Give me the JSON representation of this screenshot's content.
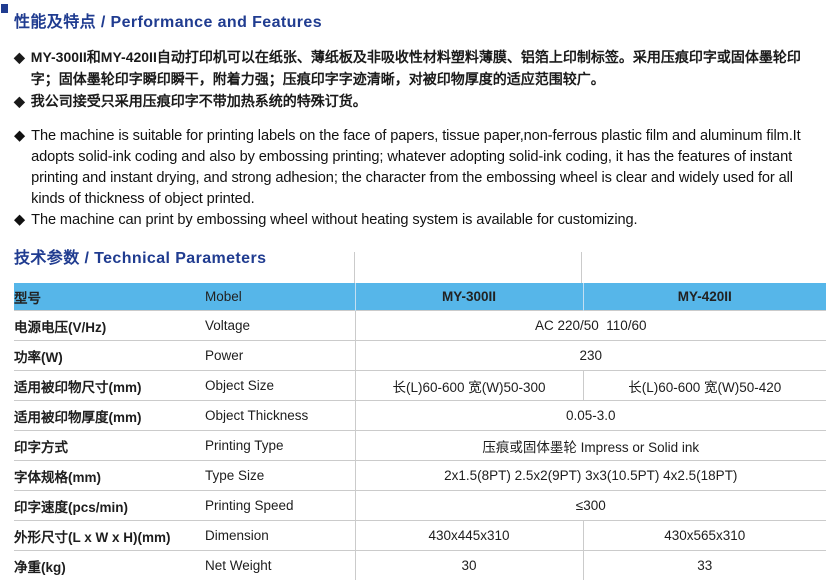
{
  "ui": {
    "bullet": "◆"
  },
  "colors": {
    "accent_navy": "#203c90",
    "header_blue": "#56b6e9",
    "border_gray": "#cbcbcb"
  },
  "sections": {
    "features": {
      "title": "性能及特点 / Performance and Features",
      "bullets_cn": [
        "MY-300II和MY-420II自动打印机可以在纸张、薄纸板及非吸收性材料塑料薄膜、铝箔上印制标签。采用压痕印字或固体墨轮印字；固体墨轮印字瞬印瞬干，附着力强；压痕印字字迹清晰，对被印物厚度的适应范围较广。",
        "我公司接受只采用压痕印字不带加热系统的特殊订货。"
      ],
      "bullets_en": [
        "The machine is suitable for printing labels on the face of papers, tissue paper,non-ferrous plastic film and aluminum film.It adopts solid-ink coding and also by embossing printing; whatever adopting solid-ink coding, it has the features of instant printing and instant drying, and strong adhesion; the character from the embossing wheel is clear and widely used for all kinds of thickness of object printed.",
        "The machine can print by embossing wheel without heating system is available for customizing."
      ]
    },
    "params": {
      "title": "技术参数 / Technical Parameters"
    }
  },
  "table": {
    "header": {
      "cn": "型号",
      "en": "Mobel",
      "model1": "MY-300II",
      "model2": "MY-420II"
    },
    "rows": [
      {
        "cn": "电源电压(V/Hz)",
        "en": "Voltage",
        "merged": "AC 220/50  110/60"
      },
      {
        "cn": "功率(W)",
        "en": "Power",
        "merged": "230"
      },
      {
        "cn": "适用被印物尺寸(mm)",
        "en": "Object Size",
        "v1": "长(L)60-600 宽(W)50-300",
        "v2": "长(L)60-600 宽(W)50-420"
      },
      {
        "cn": "适用被印物厚度(mm)",
        "en": "Object Thickness",
        "merged": "0.05-3.0"
      },
      {
        "cn": "印字方式",
        "en": "Printing Type",
        "merged": "压痕或固体墨轮 Impress or Solid ink"
      },
      {
        "cn": "字体规格(mm)",
        "en": "Type Size",
        "merged": "2x1.5(8PT) 2.5x2(9PT) 3x3(10.5PT) 4x2.5(18PT)"
      },
      {
        "cn": "印字速度(pcs/min)",
        "en": "Printing Speed",
        "merged": "≤300"
      },
      {
        "cn": "外形尺寸(L x W x H)(mm)",
        "en": "Dimension",
        "v1": "430x445x310",
        "v2": "430x565x310"
      },
      {
        "cn": "净重(kg)",
        "en": "Net Weight",
        "v1": "30",
        "v2": "33"
      }
    ]
  }
}
